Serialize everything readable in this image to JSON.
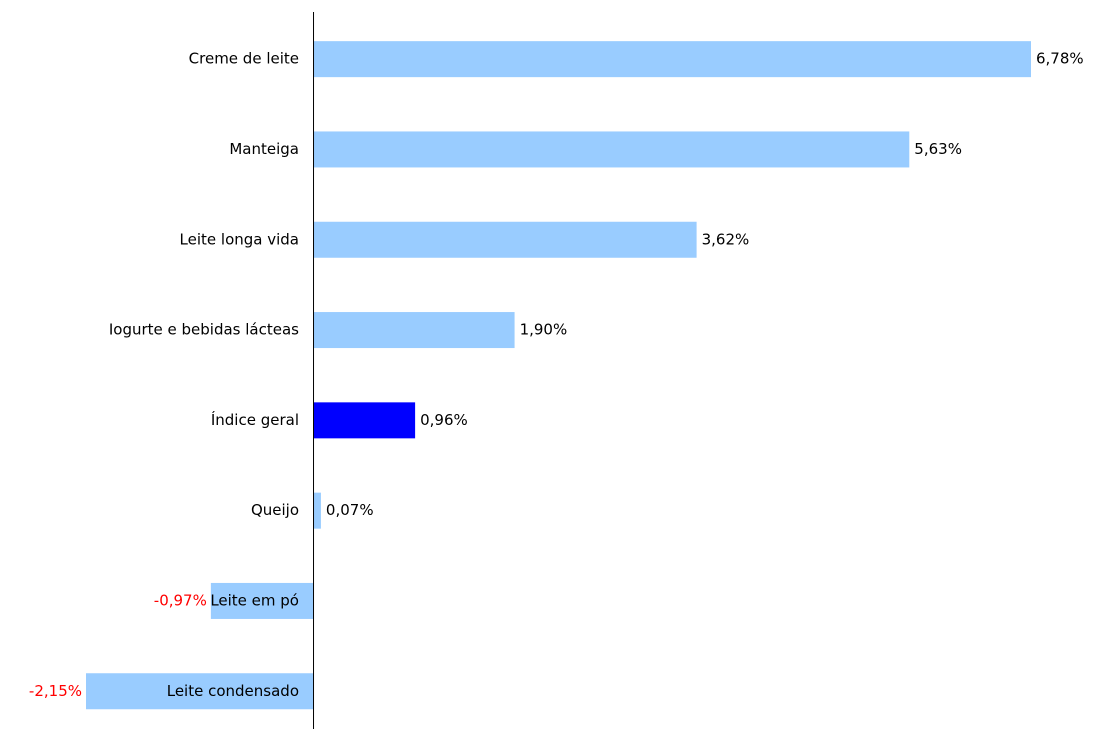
{
  "chart_data": {
    "type": "bar",
    "orientation": "horizontal",
    "categories": [
      "Creme de leite",
      "Manteiga",
      "Leite longa vida",
      "Iogurte e bebidas lácteas",
      "Índice geral",
      "Queijo",
      "Leite em pó",
      "Leite condensado"
    ],
    "values": [
      6.78,
      5.63,
      3.62,
      1.9,
      0.96,
      0.07,
      -0.97,
      -2.15
    ],
    "value_labels": [
      "6,78%",
      "5,63%",
      "3,62%",
      "1,90%",
      "0,96%",
      "0,07%",
      "-0,97%",
      "-2,15%"
    ],
    "colors": [
      "#99ccff",
      "#99ccff",
      "#99ccff",
      "#99ccff",
      "#0000ff",
      "#99ccff",
      "#99ccff",
      "#99ccff"
    ],
    "label_color": "#000000",
    "negative_label_color": "#ff0000"
  }
}
